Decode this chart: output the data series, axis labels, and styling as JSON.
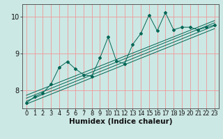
{
  "background_color": "#cce8e4",
  "grid_color": "#ee9999",
  "line_color": "#006655",
  "x_min": 0,
  "x_max": 23,
  "y_min": 7.5,
  "y_max": 10.35,
  "xlabel": "Humidex (Indice chaleur)",
  "xlabel_fontsize": 7.5,
  "tick_fontsize": 6,
  "yticks": [
    8,
    9,
    10
  ],
  "xticks": [
    0,
    1,
    2,
    3,
    4,
    5,
    6,
    7,
    8,
    9,
    10,
    11,
    12,
    13,
    14,
    15,
    16,
    17,
    18,
    19,
    20,
    21,
    22,
    23
  ],
  "data_line": [
    [
      0,
      7.65
    ],
    [
      1,
      7.82
    ],
    [
      2,
      7.92
    ],
    [
      3,
      8.16
    ],
    [
      4,
      8.62
    ],
    [
      5,
      8.78
    ],
    [
      6,
      8.58
    ],
    [
      7,
      8.42
    ],
    [
      8,
      8.38
    ],
    [
      9,
      8.88
    ],
    [
      10,
      9.45
    ],
    [
      11,
      8.8
    ],
    [
      12,
      8.72
    ],
    [
      13,
      9.25
    ],
    [
      14,
      9.55
    ],
    [
      15,
      10.05
    ],
    [
      16,
      9.62
    ],
    [
      17,
      10.12
    ],
    [
      18,
      9.65
    ],
    [
      19,
      9.72
    ],
    [
      20,
      9.72
    ],
    [
      21,
      9.65
    ],
    [
      22,
      9.72
    ],
    [
      23,
      9.78
    ]
  ],
  "trend_lines": [
    [
      [
        0,
        7.62
      ],
      [
        23,
        9.68
      ]
    ],
    [
      [
        0,
        7.7
      ],
      [
        23,
        9.76
      ]
    ],
    [
      [
        0,
        7.78
      ],
      [
        23,
        9.84
      ]
    ],
    [
      [
        0,
        7.86
      ],
      [
        23,
        9.9
      ]
    ]
  ]
}
